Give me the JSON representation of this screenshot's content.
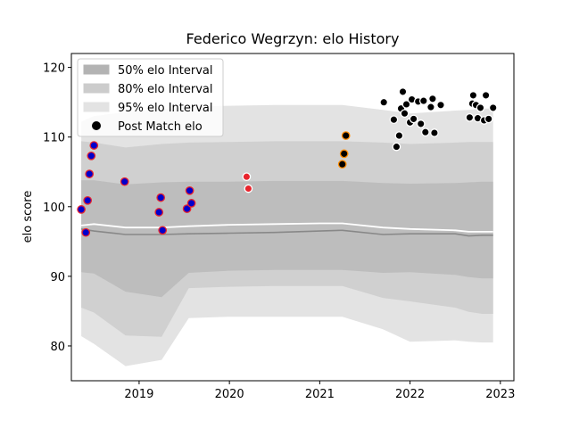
{
  "chart_data": {
    "type": "scatter",
    "title": "Federico Wegrzyn: elo History",
    "xlabel": "",
    "ylabel": "elo score",
    "xlim": [
      2018.25,
      2023.15
    ],
    "ylim": [
      75,
      122
    ],
    "x_ticks": [
      2019,
      2020,
      2021,
      2022,
      2023
    ],
    "y_ticks": [
      80,
      90,
      100,
      110,
      120
    ],
    "legend_position": "top-left",
    "legend": [
      {
        "label": "50% elo Interval",
        "kind": "band",
        "color": "#b3b3b3"
      },
      {
        "label": "80% elo Interval",
        "kind": "band",
        "color": "#cccccc"
      },
      {
        "label": "95% elo Interval",
        "kind": "band",
        "color": "#e3e3e3"
      },
      {
        "label": "Post Match elo",
        "kind": "marker",
        "color": "#000000"
      }
    ],
    "bands": {
      "x": [
        2018.36,
        2018.5,
        2018.85,
        2019.25,
        2019.55,
        2020.0,
        2020.5,
        2021.0,
        2021.25,
        2021.7,
        2022.0,
        2022.5,
        2022.65,
        2022.8,
        2022.92
      ],
      "interval_95": {
        "upper": [
          112.2,
          113.0,
          113.6,
          114.0,
          114.3,
          114.5,
          114.6,
          114.6,
          114.6,
          113.9,
          113.4,
          113.8,
          113.9,
          114.1,
          114.1
        ],
        "lower": [
          81.4,
          80.3,
          77.1,
          78.0,
          84.0,
          84.2,
          84.2,
          84.2,
          84.2,
          82.4,
          80.6,
          80.8,
          80.6,
          80.5,
          80.5
        ]
      },
      "interval_80": {
        "upper": [
          109.4,
          109.2,
          108.5,
          109.0,
          109.2,
          109.3,
          109.4,
          109.4,
          109.4,
          109.2,
          109.0,
          109.2,
          109.3,
          109.3,
          109.3
        ],
        "lower": [
          85.5,
          84.8,
          81.5,
          81.3,
          88.3,
          88.5,
          88.6,
          88.6,
          88.6,
          86.9,
          86.4,
          85.5,
          84.9,
          84.6,
          84.6
        ]
      },
      "interval_50": {
        "upper": [
          103.8,
          103.8,
          103.2,
          103.5,
          103.6,
          103.6,
          103.7,
          103.7,
          103.7,
          103.4,
          103.3,
          103.4,
          103.5,
          103.6,
          103.6
        ],
        "lower": [
          90.6,
          90.4,
          87.8,
          87.0,
          90.5,
          90.8,
          90.9,
          90.9,
          90.9,
          90.5,
          90.6,
          90.2,
          89.9,
          89.7,
          89.7
        ]
      },
      "median_line": [
        96.8,
        96.5,
        96.0,
        96.0,
        96.1,
        96.2,
        96.3,
        96.5,
        96.6,
        96.0,
        96.1,
        96.1,
        95.8,
        95.9,
        95.9
      ],
      "mean_line": [
        97.3,
        97.5,
        97.0,
        97.0,
        97.2,
        97.4,
        97.5,
        97.6,
        97.6,
        97.0,
        96.8,
        96.6,
        96.4,
        96.4,
        96.4
      ]
    },
    "series": [
      {
        "fill": "#0000cc",
        "edge": "#e8242d",
        "points": [
          [
            2018.36,
            99.6
          ],
          [
            2018.41,
            96.3
          ],
          [
            2018.43,
            100.9
          ],
          [
            2018.45,
            104.7
          ],
          [
            2018.47,
            107.3
          ],
          [
            2018.5,
            108.8
          ],
          [
            2018.84,
            103.6
          ],
          [
            2019.22,
            99.2
          ],
          [
            2019.24,
            101.3
          ],
          [
            2019.26,
            96.6
          ],
          [
            2019.53,
            99.7
          ],
          [
            2019.56,
            102.3
          ],
          [
            2019.58,
            100.5
          ]
        ]
      },
      {
        "fill": "#e8242d",
        "edge": "#ffffff",
        "points": [
          [
            2020.19,
            104.3
          ],
          [
            2020.21,
            102.6
          ]
        ]
      },
      {
        "fill": "#000000",
        "edge": "#ff8c00",
        "points": [
          [
            2021.25,
            106.1
          ],
          [
            2021.27,
            107.6
          ],
          [
            2021.29,
            110.2
          ]
        ]
      },
      {
        "fill": "#000000",
        "edge": "#ffffff",
        "points": [
          [
            2021.71,
            115.0
          ],
          [
            2021.82,
            112.5
          ],
          [
            2021.85,
            108.6
          ],
          [
            2021.88,
            110.2
          ],
          [
            2021.9,
            114.1
          ],
          [
            2021.92,
            116.5
          ],
          [
            2021.94,
            113.4
          ],
          [
            2021.96,
            114.7
          ],
          [
            2022.0,
            112.1
          ],
          [
            2022.02,
            115.4
          ],
          [
            2022.04,
            112.6
          ],
          [
            2022.09,
            115.1
          ],
          [
            2022.12,
            111.9
          ],
          [
            2022.15,
            115.2
          ],
          [
            2022.17,
            110.7
          ],
          [
            2022.23,
            114.3
          ],
          [
            2022.25,
            115.5
          ],
          [
            2022.27,
            110.6
          ],
          [
            2022.34,
            114.6
          ],
          [
            2022.66,
            112.8
          ],
          [
            2022.69,
            114.8
          ],
          [
            2022.7,
            116.0
          ],
          [
            2022.73,
            114.6
          ],
          [
            2022.75,
            112.7
          ],
          [
            2022.78,
            114.2
          ],
          [
            2022.82,
            112.4
          ],
          [
            2022.84,
            116.0
          ],
          [
            2022.87,
            112.6
          ],
          [
            2022.92,
            114.2
          ]
        ]
      }
    ]
  }
}
